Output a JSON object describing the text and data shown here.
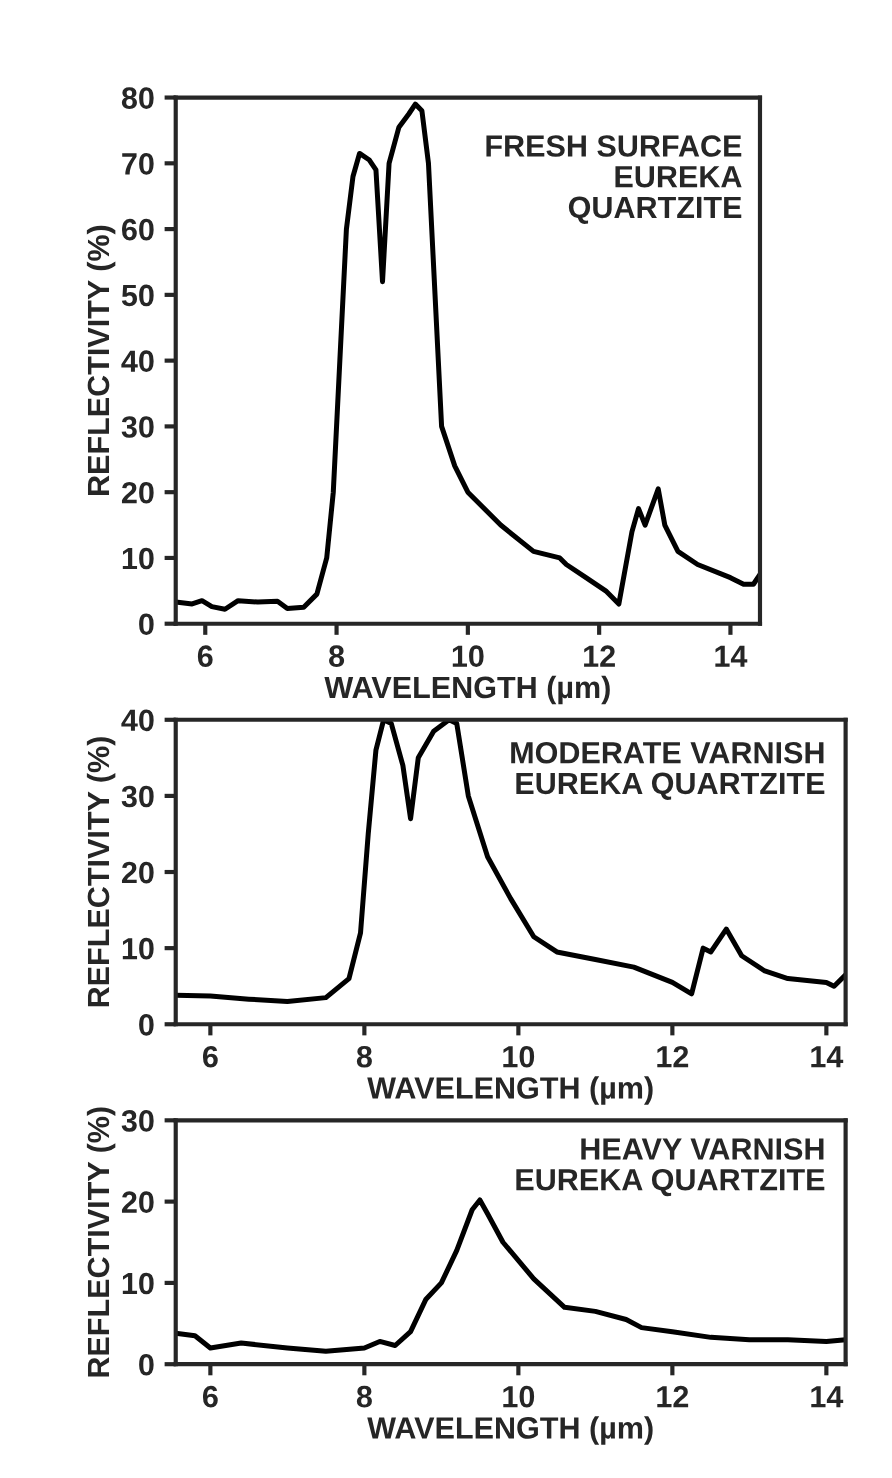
{
  "chart_data": [
    {
      "type": "line",
      "xlabel": "WAVELENGTH (µm)",
      "ylabel": "REFLECTIVITY (%)",
      "annotations": [
        "FRESH SURFACE\nEUREKA\nQUARTZITE"
      ],
      "x": [
        5.55,
        5.8,
        5.95,
        6.1,
        6.3,
        6.5,
        6.8,
        7.1,
        7.25,
        7.5,
        7.7,
        7.85,
        7.95,
        8.05,
        8.15,
        8.25,
        8.35,
        8.5,
        8.6,
        8.7,
        8.8,
        8.95,
        9.1,
        9.2,
        9.3,
        9.4,
        9.5,
        9.6,
        9.8,
        10.0,
        10.5,
        11.0,
        11.4,
        11.5,
        11.8,
        12.1,
        12.3,
        12.5,
        12.6,
        12.7,
        12.9,
        13.0,
        13.2,
        13.5,
        14.0,
        14.2,
        14.35,
        14.45
      ],
      "series": [
        {
          "color": "#000000",
          "values": [
            3.3,
            3.0,
            3.5,
            2.6,
            2.2,
            3.5,
            3.3,
            3.4,
            2.3,
            2.5,
            4.5,
            10,
            20,
            40,
            60,
            68,
            71.5,
            70.5,
            69,
            52,
            70,
            75.5,
            77.5,
            79,
            78,
            70,
            50,
            30,
            24,
            20,
            15,
            11,
            10,
            9,
            7,
            5,
            3,
            14,
            17.5,
            15,
            20.5,
            15,
            11,
            9,
            7,
            6,
            6,
            7.5
          ]
        }
      ],
      "xlim": [
        5.55,
        14.45
      ],
      "ylim": [
        0,
        80
      ],
      "xticks": [
        6,
        8,
        10,
        12,
        14
      ],
      "yticks": [
        0,
        10,
        20,
        30,
        40,
        50,
        60,
        70,
        80
      ],
      "grid": false
    },
    {
      "type": "line",
      "xlabel": "WAVELENGTH (µm)",
      "ylabel": "REFLECTIVITY (%)",
      "annotations": [
        "MODERATE VARNISH\nEUREKA QUARTZITE"
      ],
      "x": [
        5.55,
        6,
        6.5,
        7,
        7.5,
        7.8,
        7.95,
        8.05,
        8.15,
        8.25,
        8.35,
        8.5,
        8.6,
        8.7,
        8.9,
        9.1,
        9.2,
        9.35,
        9.6,
        9.9,
        10.2,
        10.5,
        11,
        11.5,
        12,
        12.25,
        12.4,
        12.5,
        12.7,
        12.9,
        13.2,
        13.5,
        14.0,
        14.1,
        14.25
      ],
      "series": [
        {
          "color": "#000000",
          "values": [
            3.8,
            3.7,
            3.3,
            3.0,
            3.5,
            6,
            12,
            25,
            36,
            40,
            39.5,
            34,
            27,
            35,
            38.5,
            40,
            39.5,
            30,
            22,
            16.5,
            11.5,
            9.5,
            8.5,
            7.5,
            5.5,
            4.0,
            10,
            9.5,
            12.5,
            9,
            7,
            6,
            5.5,
            5.0,
            6.5
          ]
        }
      ],
      "xlim": [
        5.55,
        14.25
      ],
      "ylim": [
        0,
        40
      ],
      "xticks": [
        6,
        8,
        10,
        12,
        14
      ],
      "yticks": [
        0,
        10,
        20,
        30,
        40
      ],
      "grid": false
    },
    {
      "type": "line",
      "xlabel": "WAVELENGTH (µm)",
      "ylabel": "REFLECTIVITY (%)",
      "annotations": [
        "HEAVY VARNISH\nEUREKA QUARTZITE"
      ],
      "x": [
        5.55,
        5.8,
        6.0,
        6.4,
        7.0,
        7.5,
        8.0,
        8.2,
        8.4,
        8.6,
        8.8,
        9.0,
        9.2,
        9.4,
        9.5,
        9.6,
        9.8,
        10.2,
        10.6,
        11.0,
        11.4,
        11.6,
        12.0,
        12.5,
        13,
        13.5,
        14.0,
        14.25
      ],
      "series": [
        {
          "color": "#000000",
          "values": [
            3.8,
            3.5,
            2.0,
            2.6,
            2.0,
            1.6,
            2.0,
            2.8,
            2.3,
            4.0,
            8,
            10,
            14,
            19,
            20.2,
            18.5,
            15,
            10.5,
            7,
            6.5,
            5.5,
            4.5,
            4.0,
            3.3,
            3.0,
            3.0,
            2.8,
            3.0
          ]
        }
      ],
      "xlim": [
        5.55,
        14.25
      ],
      "ylim": [
        0,
        30
      ],
      "xticks": [
        6,
        8,
        10,
        12,
        14
      ],
      "yticks": [
        0,
        10,
        20,
        30
      ],
      "grid": false
    }
  ]
}
